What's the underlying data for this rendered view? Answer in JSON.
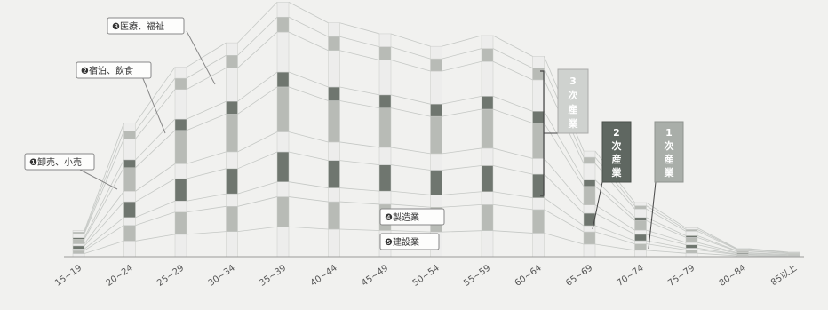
{
  "chart_data": {
    "type": "bar",
    "categories": [
      "15~19",
      "20~24",
      "25~29",
      "30~34",
      "35~39",
      "40~44",
      "45~49",
      "50~54",
      "55~59",
      "60~64",
      "65~69",
      "70~74",
      "75~79",
      "80~84",
      "85以上"
    ],
    "values": [
      29,
      148,
      210,
      237,
      282,
      259,
      247,
      233,
      245,
      222,
      117,
      60,
      32,
      9,
      5
    ],
    "ylim": [
      0,
      285
    ],
    "segment_fractions": [
      0.12,
      0.12,
      0.06,
      0.12,
      0.08,
      0.18,
      0.06,
      0.16,
      0.06,
      0.06
    ],
    "grid": false
  },
  "callouts": [
    {
      "id": "retail",
      "label": "❶卸売、小売"
    },
    {
      "id": "lodging",
      "label": "❷宿泊、飲食"
    },
    {
      "id": "medical",
      "label": "❸医療、福祉"
    },
    {
      "id": "manufacturing",
      "label": "❹製造業"
    },
    {
      "id": "construction",
      "label": "❺建設業"
    }
  ],
  "industry_badges": [
    {
      "id": "tertiary",
      "lines": [
        "3",
        "次",
        "産",
        "業"
      ]
    },
    {
      "id": "secondary",
      "lines": [
        "2",
        "次",
        "産",
        "業"
      ]
    },
    {
      "id": "primary",
      "lines": [
        "1",
        "次",
        "産",
        "業"
      ]
    }
  ],
  "colors": {
    "bar_light": "#ededec",
    "bar_mid": "#b8bbb6",
    "bar_dark": "#6f766f",
    "connector": "#c5c8c5",
    "axis": "#9a9a9a",
    "badge_tertiary": "#cfd2cf",
    "badge_secondary": "#5f6761",
    "badge_primary": "#a9aea9"
  }
}
